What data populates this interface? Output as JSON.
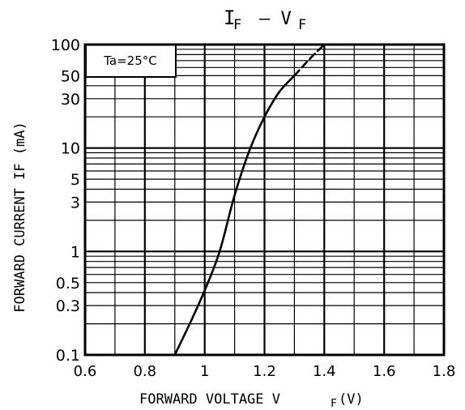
{
  "chart_data": {
    "type": "line",
    "title_main": "I",
    "title_sub1": "F",
    "title_dash": "– V",
    "title_sub2": "F",
    "annotation": "Ta=25°C",
    "xlabel_main": "FORWARD VOLTAGE   V",
    "xlabel_sub": "F",
    "xlabel_unit": "(V)",
    "ylabel": "FORWARD CURRENT   IF (mA)",
    "y_scale": "log",
    "xlim": [
      0.6,
      1.8
    ],
    "ylim": [
      0.1,
      100
    ],
    "x_ticks": [
      0.6,
      0.8,
      1,
      1.2,
      1.4,
      1.6,
      1.8
    ],
    "x_tick_labels": [
      "0.6",
      "0.8",
      "1",
      "1.2",
      "1.4",
      "1.6",
      "1.8"
    ],
    "y_tick_values": [
      0.1,
      0.3,
      0.5,
      1,
      3,
      5,
      10,
      30,
      50,
      100
    ],
    "y_tick_labels": [
      "0.1",
      "0.3",
      "0.5",
      "1",
      "3",
      "5",
      "10",
      "30",
      "50",
      "100"
    ],
    "x_minor_grid": [
      0.7,
      0.9,
      1.1,
      1.3,
      1.5,
      1.7
    ],
    "grid": true,
    "series": [
      {
        "style": "solid",
        "points": [
          [
            0.9,
            0.1
          ],
          [
            0.95,
            0.2
          ],
          [
            1.0,
            0.42
          ],
          [
            1.05,
            1.0
          ],
          [
            1.1,
            3.5
          ],
          [
            1.15,
            9.5
          ],
          [
            1.2,
            20
          ],
          [
            1.25,
            35
          ],
          [
            1.3,
            50
          ]
        ]
      },
      {
        "style": "dashed",
        "points": [
          [
            1.3,
            50
          ],
          [
            1.35,
            72
          ],
          [
            1.4,
            100
          ]
        ]
      }
    ]
  }
}
